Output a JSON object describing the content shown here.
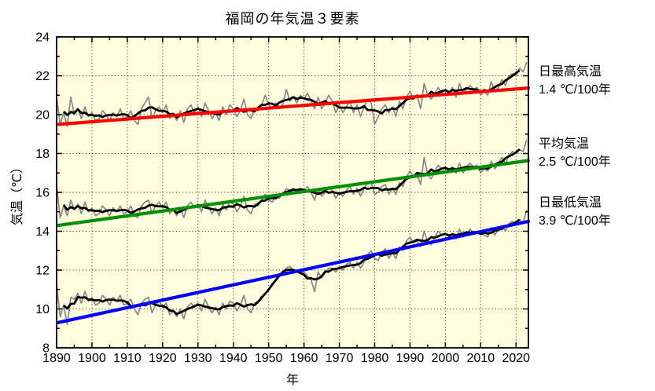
{
  "chart_data": {
    "type": "line",
    "title": "福岡の年気温３要素",
    "xlabel": "年",
    "ylabel": "気温（℃）",
    "xlim": [
      1890,
      2023.5
    ],
    "ylim": [
      8,
      24
    ],
    "x_ticks": [
      1890,
      1900,
      1910,
      1920,
      1930,
      1940,
      1950,
      1960,
      1970,
      1980,
      1990,
      2000,
      2010,
      2020
    ],
    "y_ticks": [
      8,
      10,
      12,
      14,
      16,
      18,
      20,
      22,
      24
    ],
    "years_start": 1890,
    "grid": "dotted-major",
    "legend_position": "right-outside",
    "plot_background": "#ffffe0",
    "annual_line_color": "#878787",
    "smoothed_line_color": "#000000",
    "smoothing_window_years": 5,
    "series": [
      {
        "name": "日最高気温",
        "trend_label": "1.4 ℃/100年",
        "trend_rate_c_per_100y": 1.4,
        "trend_value_at_1890": 19.5,
        "trend_color": "#ff0000",
        "annual_values": [
          20.9,
          19.5,
          20.1,
          19.4,
          20.9,
          20.0,
          20.3,
          19.8,
          20.4,
          19.9,
          20.1,
          19.7,
          19.8,
          20.2,
          20.0,
          19.7,
          20.1,
          19.9,
          20.3,
          19.8,
          19.9,
          20.2,
          19.7,
          19.5,
          20.3,
          20.6,
          20.9,
          19.8,
          20.2,
          20.4,
          20.1,
          20.5,
          19.8,
          20.0,
          19.7,
          20.2,
          19.6,
          20.3,
          20.5,
          20.1,
          20.4,
          19.9,
          20.6,
          20.2,
          19.8,
          20.1,
          19.7,
          20.4,
          20.0,
          20.5,
          20.3,
          19.9,
          20.2,
          20.8,
          20.0,
          19.8,
          20.3,
          20.2,
          20.5,
          21.0,
          20.5,
          20.3,
          20.6,
          20.4,
          20.5,
          21.3,
          20.7,
          20.9,
          20.6,
          21.0,
          20.8,
          21.1,
          20.7,
          20.3,
          20.9,
          20.3,
          20.6,
          21.0,
          20.7,
          20.1,
          20.5,
          20.1,
          20.4,
          20.7,
          20.1,
          20.5,
          19.9,
          20.4,
          20.8,
          20.6,
          19.5,
          19.9,
          20.3,
          20.5,
          20.1,
          20.4,
          19.9,
          20.7,
          20.3,
          20.9,
          21.2,
          20.8,
          21.0,
          20.3,
          21.6,
          21.0,
          20.8,
          21.1,
          21.4,
          21.1,
          21.3,
          21.1,
          21.4,
          20.9,
          21.6,
          21.1,
          21.3,
          21.5,
          21.3,
          21.4,
          21.0,
          21.2,
          21.0,
          21.7,
          21.2,
          21.4,
          21.8,
          21.5,
          22.0,
          22.1,
          22.0,
          22.4,
          22.2,
          22.7
        ]
      },
      {
        "name": "平均気温",
        "trend_label": "2.5 ℃/100年",
        "trend_rate_c_per_100y": 2.5,
        "trend_value_at_1890": 14.3,
        "trend_color": "#009000",
        "annual_values": [
          16.4,
          14.7,
          15.3,
          14.8,
          15.6,
          15.1,
          15.4,
          14.9,
          15.5,
          15.0,
          15.2,
          14.8,
          14.9,
          15.3,
          15.1,
          14.8,
          15.2,
          15.0,
          15.3,
          14.9,
          15.0,
          15.3,
          14.8,
          14.7,
          15.3,
          15.5,
          15.6,
          14.9,
          15.3,
          15.5,
          15.2,
          15.5,
          14.9,
          15.1,
          14.8,
          15.2,
          14.7,
          15.3,
          15.5,
          15.2,
          15.4,
          15.0,
          15.6,
          15.2,
          14.9,
          15.2,
          14.8,
          15.4,
          15.1,
          15.5,
          15.4,
          15.0,
          15.3,
          15.8,
          15.1,
          14.9,
          15.4,
          15.3,
          15.6,
          15.9,
          15.6,
          15.5,
          15.8,
          15.7,
          15.9,
          16.2,
          16.1,
          16.2,
          16.0,
          16.2,
          16.1,
          16.3,
          16.0,
          15.6,
          16.2,
          15.8,
          16.0,
          16.3,
          16.1,
          15.7,
          16.0,
          15.8,
          16.1,
          16.3,
          15.9,
          16.2,
          15.8,
          16.2,
          16.5,
          16.5,
          15.9,
          16.0,
          16.3,
          16.4,
          15.9,
          16.2,
          15.9,
          16.5,
          16.3,
          16.8,
          17.1,
          16.8,
          16.9,
          16.4,
          17.8,
          16.9,
          16.7,
          17.1,
          17.4,
          17.2,
          17.3,
          17.1,
          17.3,
          17.0,
          17.5,
          17.0,
          17.3,
          17.5,
          17.3,
          17.4,
          17.0,
          17.2,
          17.1,
          17.6,
          17.2,
          17.5,
          17.8,
          17.5,
          17.9,
          18.1,
          18.0,
          18.2,
          18.1,
          18.7
        ]
      },
      {
        "name": "日最低気温",
        "trend_label": "3.9 ℃/100年",
        "trend_rate_c_per_100y": 3.9,
        "trend_value_at_1890": 9.3,
        "trend_color": "#0000ff",
        "annual_values": [
          11.3,
          9.6,
          10.2,
          9.2,
          10.6,
          10.5,
          10.8,
          10.3,
          10.9,
          10.4,
          10.6,
          10.2,
          10.3,
          10.7,
          10.5,
          10.2,
          10.6,
          10.4,
          10.7,
          10.2,
          10.3,
          10.5,
          10.0,
          9.7,
          10.3,
          10.5,
          10.6,
          9.8,
          10.2,
          10.4,
          10.1,
          10.3,
          9.7,
          9.9,
          9.6,
          10.0,
          9.5,
          10.1,
          10.3,
          10.1,
          10.3,
          9.9,
          10.5,
          10.1,
          9.8,
          10.1,
          9.7,
          10.3,
          10.0,
          10.4,
          10.3,
          9.9,
          10.2,
          10.7,
          10.0,
          9.8,
          10.3,
          10.4,
          10.5,
          10.8,
          11.0,
          11.2,
          11.5,
          11.8,
          11.9,
          12.1,
          12.2,
          12.0,
          11.9,
          11.8,
          11.9,
          11.7,
          11.5,
          10.9,
          11.9,
          11.6,
          11.9,
          12.1,
          12.1,
          11.9,
          12.2,
          12.0,
          12.3,
          12.4,
          12.1,
          12.4,
          12.1,
          12.4,
          12.8,
          13.0,
          12.6,
          12.5,
          12.9,
          13.1,
          12.6,
          12.9,
          12.6,
          13.2,
          13.0,
          13.5,
          13.7,
          13.4,
          13.5,
          13.2,
          14.0,
          13.5,
          13.3,
          13.7,
          14.0,
          13.8,
          13.9,
          13.7,
          13.9,
          13.6,
          14.1,
          13.7,
          13.9,
          14.1,
          13.9,
          14.0,
          13.9,
          13.8,
          13.7,
          14.2,
          13.8,
          14.1,
          14.3,
          14.0,
          14.4,
          14.5,
          14.4,
          14.6,
          14.4,
          15.1
        ]
      }
    ]
  }
}
